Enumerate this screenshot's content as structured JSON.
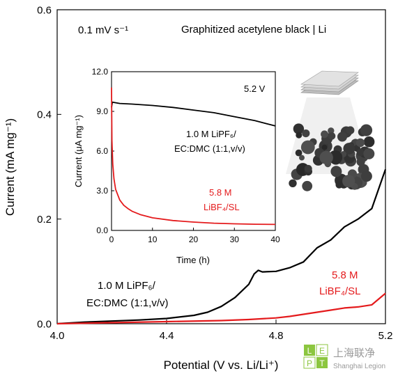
{
  "chart_data": [
    {
      "type": "line",
      "xlabel": "Potential (V vs. Li/Li⁺)",
      "ylabel": "Current (mA mg⁻¹)",
      "xlim": [
        4.0,
        5.2
      ],
      "ylim": [
        0.0,
        0.6
      ],
      "x_ticks": [
        "4.0",
        "4.4",
        "4.8",
        "5.2"
      ],
      "y_ticks": [
        "0.0",
        "0.2",
        "0.4",
        "0.6"
      ],
      "grid": false,
      "annotations": {
        "scan_rate": "0.1 mV s⁻¹",
        "system": "Graphitized acetylene black | Li"
      },
      "series": [
        {
          "name": "1.0 M LiPF₆/ EC:DMC (1:1,v/v)",
          "label_line1": "1.0 M LiPF₆/",
          "label_line2": "EC:DMC (1:1,v/v)",
          "color": "#000000",
          "x": [
            4.0,
            4.1,
            4.2,
            4.3,
            4.4,
            4.5,
            4.55,
            4.6,
            4.65,
            4.7,
            4.72,
            4.735,
            4.75,
            4.8,
            4.85,
            4.9,
            4.95,
            5.0,
            5.05,
            5.1,
            5.15,
            5.2
          ],
          "y": [
            0.0,
            0.003,
            0.005,
            0.007,
            0.01,
            0.016,
            0.022,
            0.033,
            0.05,
            0.075,
            0.095,
            0.102,
            0.099,
            0.1,
            0.107,
            0.118,
            0.145,
            0.16,
            0.185,
            0.2,
            0.22,
            0.295
          ]
        },
        {
          "name": "5.8 M LiBF₄/SL",
          "label_line1": "5.8 M",
          "label_line2": "LiBF₄/SL",
          "color": "#e41a1c",
          "x": [
            4.0,
            4.2,
            4.4,
            4.6,
            4.7,
            4.8,
            4.85,
            4.9,
            4.95,
            5.0,
            5.05,
            5.1,
            5.15,
            5.2
          ],
          "y": [
            0.0,
            0.002,
            0.004,
            0.006,
            0.008,
            0.011,
            0.014,
            0.018,
            0.022,
            0.026,
            0.03,
            0.032,
            0.036,
            0.058
          ]
        }
      ]
    },
    {
      "type": "line",
      "xlabel": "Time (h)",
      "ylabel": "Current (μA mg⁻¹)",
      "xlim": [
        0,
        40
      ],
      "ylim": [
        0.0,
        12.0
      ],
      "x_ticks": [
        "0",
        "10",
        "20",
        "30",
        "40"
      ],
      "y_ticks": [
        "0.0",
        "3.0",
        "6.0",
        "9.0",
        "12.0"
      ],
      "grid": false,
      "annotations": {
        "hold_potential": "5.2 V"
      },
      "series": [
        {
          "name": "1.0 M LiPF₆/ EC:DMC (1:1,v/v)",
          "label_line1": "1.0 M LiPF₆/",
          "label_line2": "EC:DMC (1:1,v/v)",
          "color": "#000000",
          "x": [
            0,
            0.2,
            2,
            5,
            10,
            15,
            20,
            25,
            30,
            35,
            40
          ],
          "y": [
            9.3,
            9.7,
            9.6,
            9.55,
            9.45,
            9.3,
            9.1,
            8.9,
            8.6,
            8.3,
            7.9
          ]
        },
        {
          "name": "5.8 M LiBF₄/SL",
          "label_line1": "5.8 M",
          "label_line2": "LiBF₄/SL",
          "color": "#e41a1c",
          "x": [
            0,
            0.1,
            0.3,
            0.6,
            1,
            2,
            3,
            4,
            5,
            7,
            10,
            15,
            20,
            25,
            30,
            35,
            40
          ],
          "y": [
            10.8,
            6.8,
            5.0,
            3.9,
            3.1,
            2.3,
            1.9,
            1.65,
            1.45,
            1.2,
            0.95,
            0.75,
            0.63,
            0.55,
            0.5,
            0.47,
            0.45
          ]
        }
      ]
    }
  ],
  "watermark": {
    "letters": [
      "L",
      "E",
      "P",
      "T"
    ],
    "text_cn": "上海联净",
    "text_en": "Shanghai Legion"
  }
}
